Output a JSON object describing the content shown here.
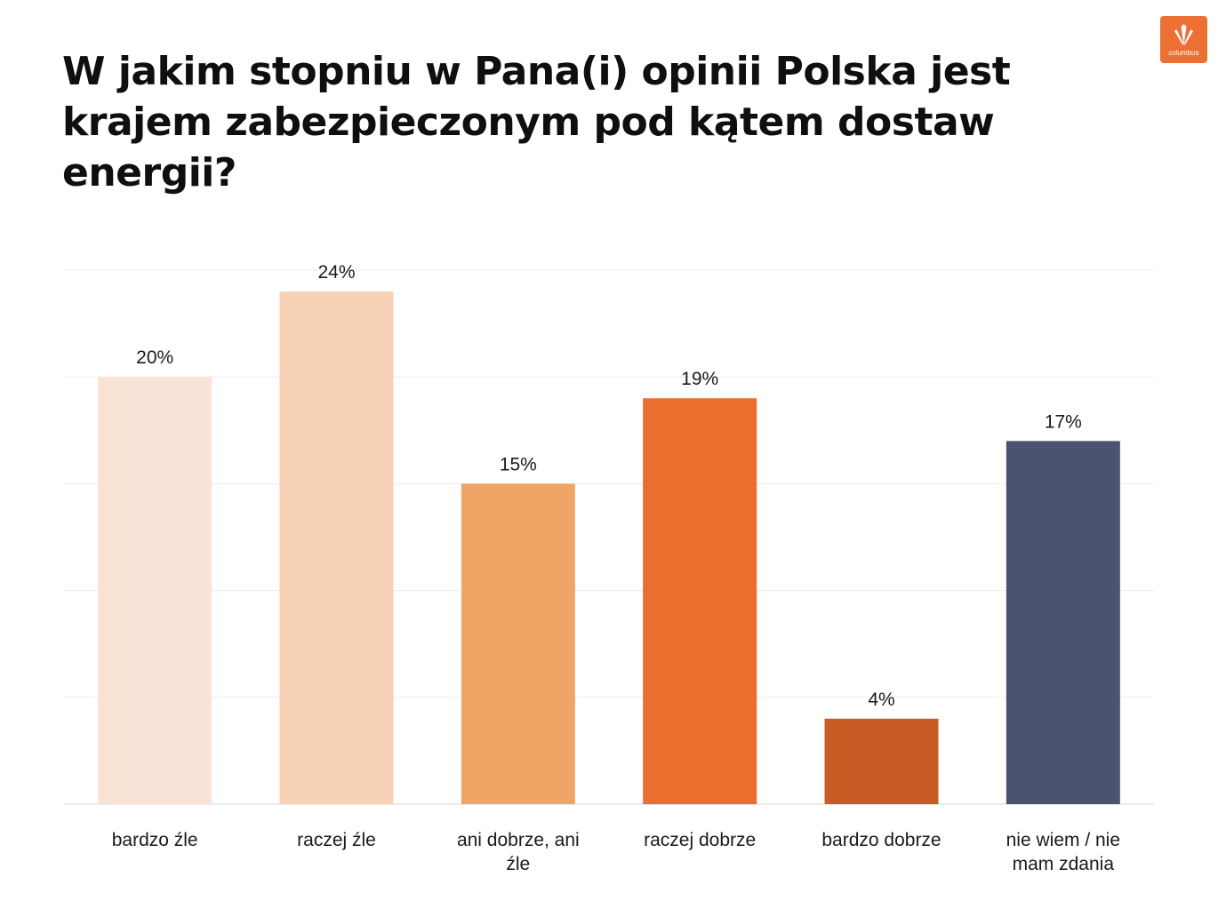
{
  "title": "W jakim stopniu w Pana(i) opinii Polska jest krajem zabezpieczonym pod kątem dostaw energii?",
  "logo": {
    "text": "columbus",
    "background": "#ec7033"
  },
  "chart_data": {
    "type": "bar",
    "title": "W jakim stopniu w Pana(i) opinii Polska jest krajem zabezpieczonym pod kątem dostaw energii?",
    "categories": [
      [
        "bardzo źle"
      ],
      [
        "raczej źle"
      ],
      [
        "ani dobrze, ani",
        "źle"
      ],
      [
        "raczej dobrze"
      ],
      [
        "bardzo dobrze"
      ],
      [
        "nie wiem / nie",
        "mam zdania"
      ]
    ],
    "values": [
      20,
      24,
      15,
      19,
      4,
      17
    ],
    "value_labels": [
      "20%",
      "24%",
      "15%",
      "19%",
      "4%",
      "17%"
    ],
    "colors": [
      "#f9e3d6",
      "#f7d2b7",
      "#f0a466",
      "#ea6e2e",
      "#c75c25",
      "#4a5470"
    ],
    "unit": "%",
    "ylim": [
      0,
      25
    ],
    "y_gridlines": [
      0,
      5,
      10,
      15,
      20,
      25
    ],
    "grid": true,
    "legend": "none",
    "xlabel": "",
    "ylabel": ""
  }
}
